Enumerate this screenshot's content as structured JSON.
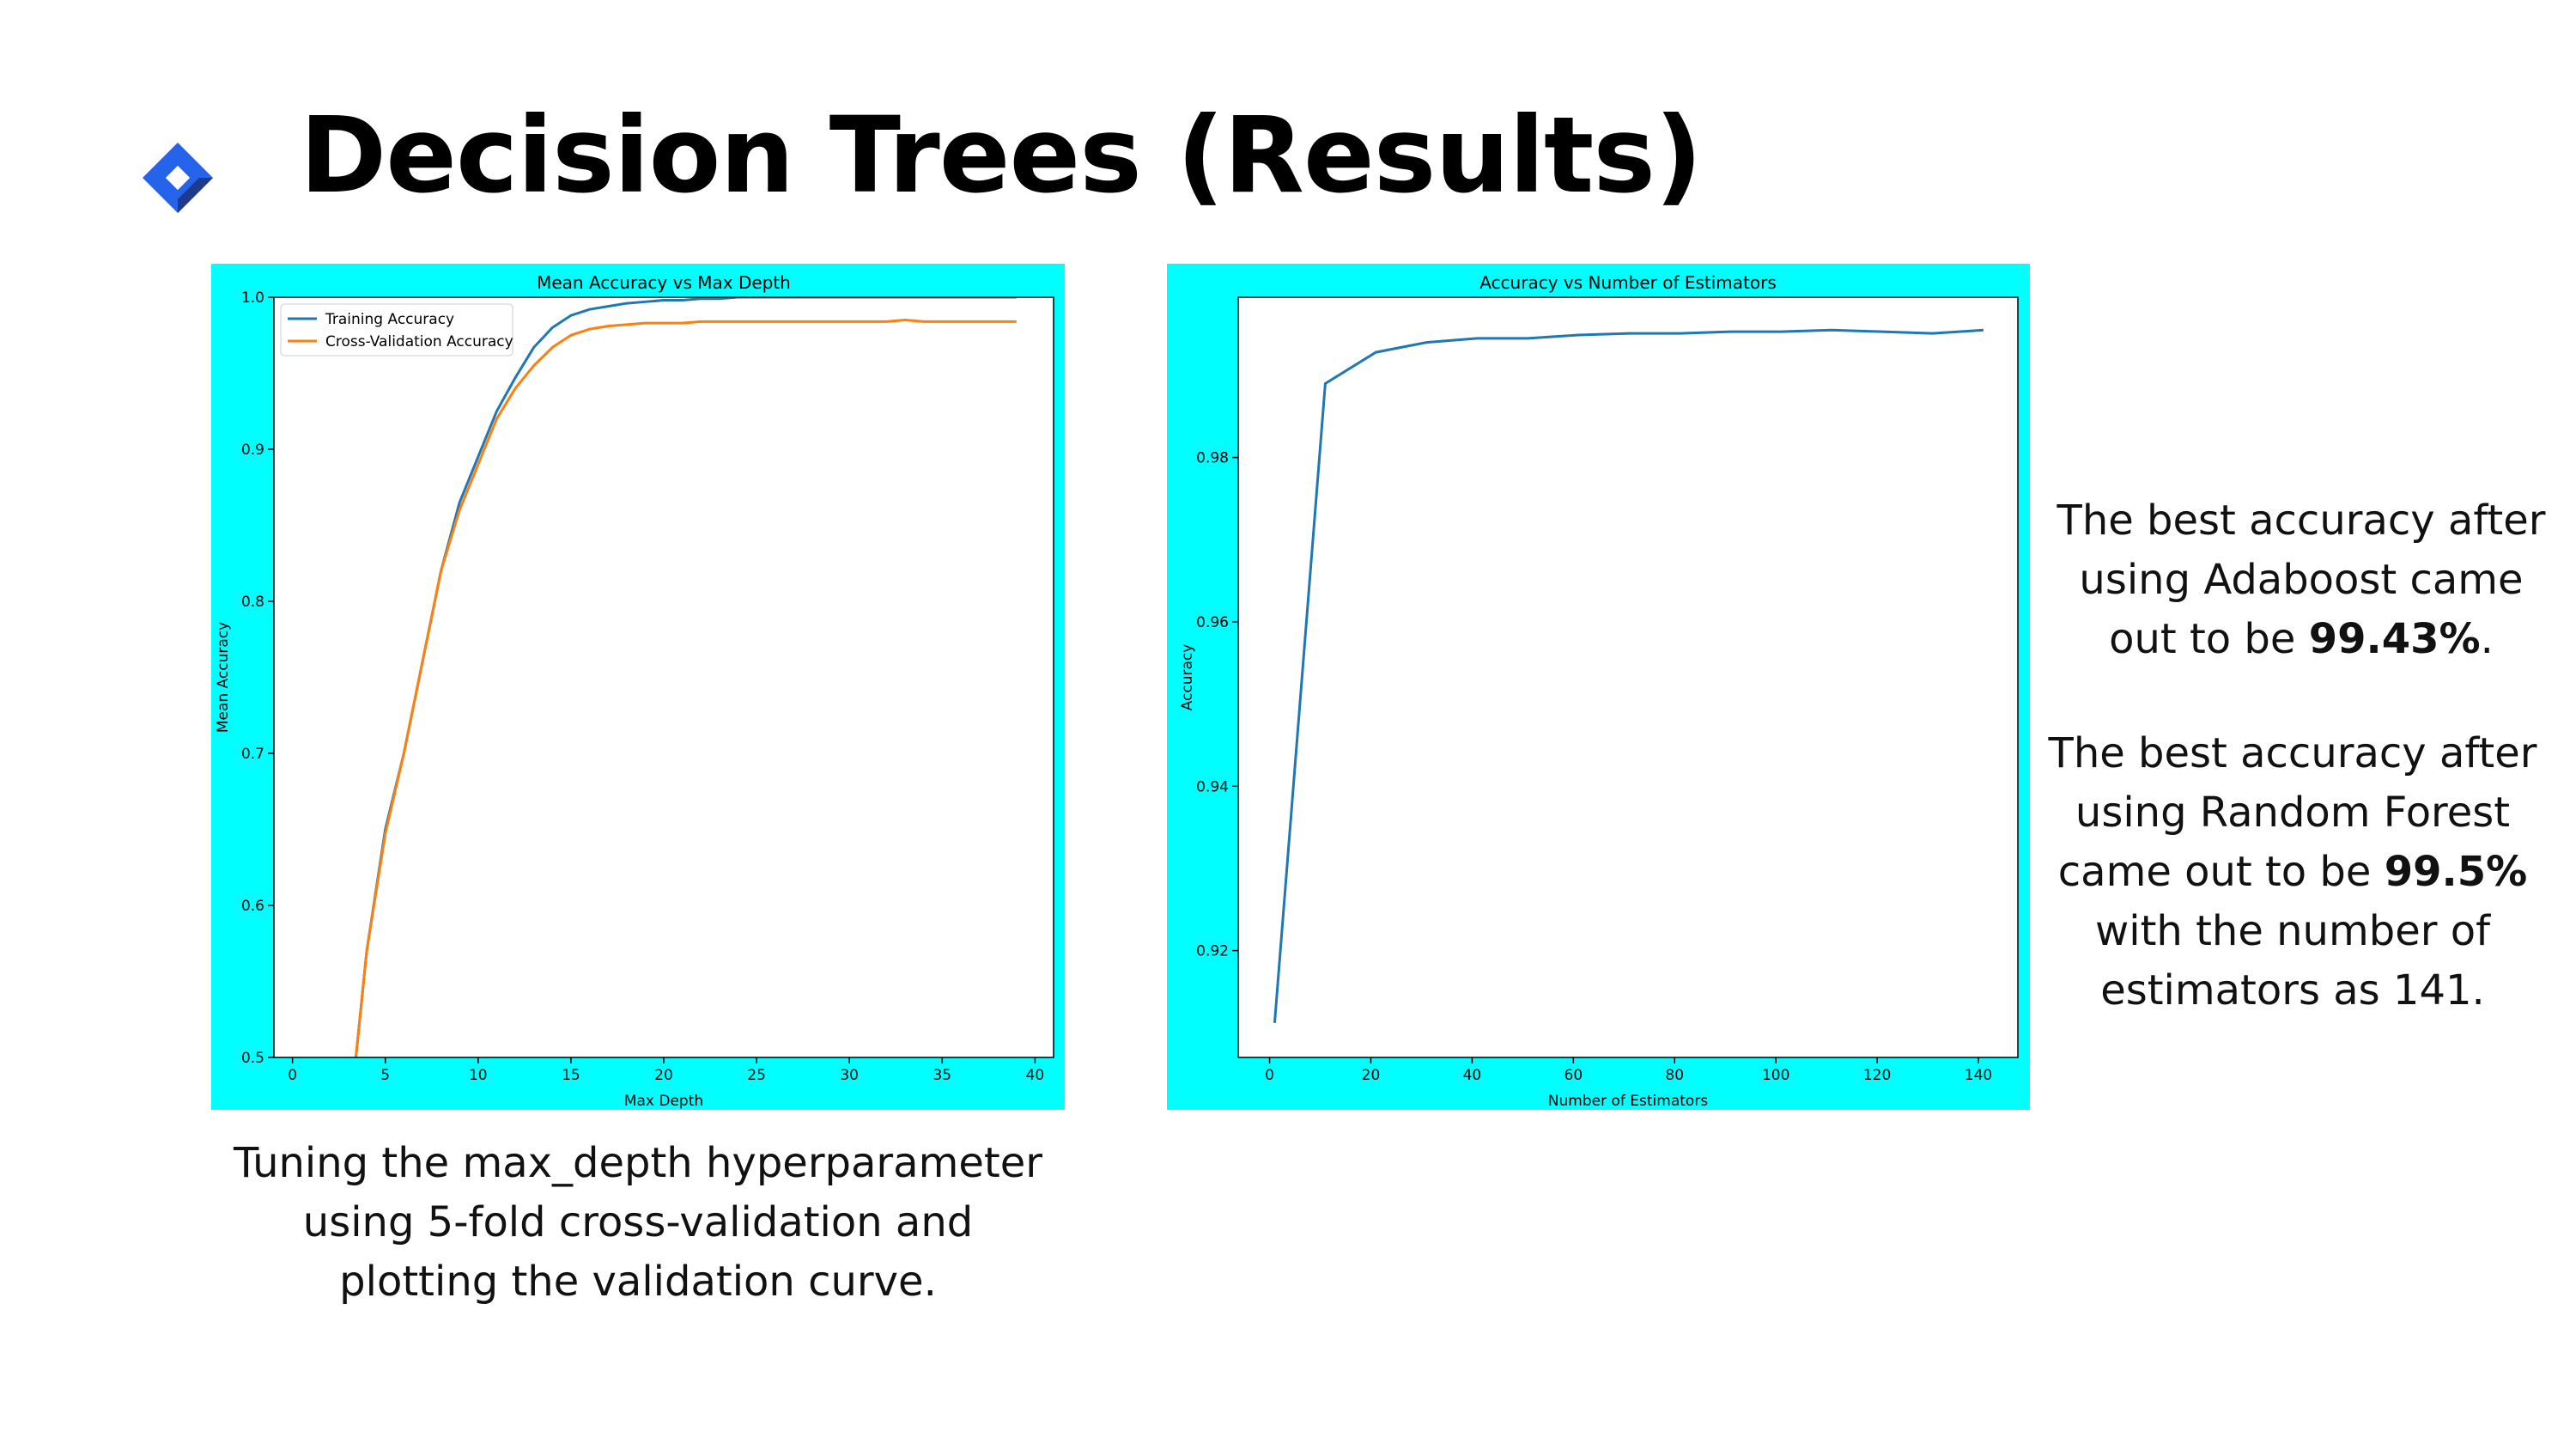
{
  "title": "Decision Trees (Results)",
  "caption": "Tuning the max_depth hyperparameter using 5-fold cross-validation and plotting the validation curve.",
  "notes": [
    {
      "before": "The best accuracy after using Adaboost came out to be ",
      "bold": "99.43%",
      "after": "."
    },
    {
      "before": "The best accuracy after using Random Forest came out to be ",
      "bold": "99.5%",
      "after": " with the number of estimators as 141."
    }
  ],
  "chart_data": [
    {
      "type": "line",
      "title": "Mean Accuracy vs Max Depth",
      "x_label": "Max Depth",
      "y_label": "Mean Accuracy",
      "x": [
        3,
        4,
        5,
        6,
        7,
        8,
        9,
        10,
        11,
        12,
        13,
        14,
        15,
        16,
        17,
        18,
        19,
        20,
        21,
        22,
        23,
        24,
        25,
        26,
        27,
        28,
        29,
        30,
        31,
        32,
        33,
        34,
        35,
        36,
        37,
        38,
        39
      ],
      "series": [
        {
          "name": "Training Accuracy",
          "color": "#1f77b4",
          "values": [
            0.45,
            0.57,
            0.65,
            0.7,
            0.76,
            0.82,
            0.865,
            0.895,
            0.925,
            0.947,
            0.967,
            0.98,
            0.988,
            0.992,
            0.994,
            0.996,
            0.997,
            0.998,
            0.998,
            0.999,
            0.999,
            1.0,
            1.0,
            1.0,
            1.0,
            1.0,
            1.0,
            1.0,
            1.0,
            1.0,
            1.0,
            1.0,
            1.0,
            1.0,
            1.0,
            1.0,
            1.0
          ]
        },
        {
          "name": "Cross-Validation Accuracy",
          "color": "#ff7f0e",
          "values": [
            0.45,
            0.57,
            0.647,
            0.7,
            0.76,
            0.82,
            0.86,
            0.89,
            0.92,
            0.94,
            0.955,
            0.967,
            0.975,
            0.979,
            0.981,
            0.982,
            0.983,
            0.983,
            0.983,
            0.984,
            0.984,
            0.984,
            0.984,
            0.984,
            0.984,
            0.984,
            0.984,
            0.984,
            0.984,
            0.984,
            0.985,
            0.984,
            0.984,
            0.984,
            0.984,
            0.984,
            0.984
          ]
        }
      ],
      "xlim": [
        -1,
        41
      ],
      "ylim": [
        0.5,
        1.0
      ],
      "xticks": [
        0,
        5,
        10,
        15,
        20,
        25,
        30,
        35,
        40
      ],
      "yticks": [
        0.5,
        0.6,
        0.7,
        0.8,
        0.9,
        {
          "value": 1,
          "label": "1.0"
        }
      ],
      "legend": "upper left",
      "grid": false
    },
    {
      "type": "line",
      "title": "Accuracy vs Number of Estimators",
      "x_label": "Number of Estimators",
      "y_label": "Accuracy",
      "x": [
        1,
        11,
        21,
        31,
        41,
        51,
        61,
        71,
        81,
        91,
        101,
        111,
        121,
        131,
        141
      ],
      "series": [
        {
          "color": "#1f77b4",
          "values": [
            0.9112,
            0.989,
            0.9928,
            0.994,
            0.9945,
            0.9945,
            0.9949,
            0.9951,
            0.9951,
            0.9953,
            0.9953,
            0.9955,
            0.9953,
            0.9951,
            0.9955
          ]
        }
      ],
      "xlim": [
        -6.2,
        147.8
      ],
      "ylim": [
        0.907,
        0.9995
      ],
      "xticks": [
        0,
        20,
        40,
        60,
        80,
        100,
        120,
        140
      ],
      "yticks": [
        0.92,
        0.94,
        0.96,
        0.98
      ],
      "grid": false
    }
  ]
}
